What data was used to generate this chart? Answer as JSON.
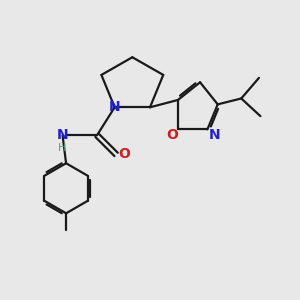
{
  "background_color": "#e8e8e8",
  "bond_color": "#1a1a1a",
  "N_color": "#2020cc",
  "O_color": "#cc2020",
  "H_color": "#5a9a8a",
  "line_width": 1.6,
  "figsize": [
    3.0,
    3.0
  ],
  "dpi": 100,
  "xlim": [
    0,
    10
  ],
  "ylim": [
    0,
    10
  ]
}
